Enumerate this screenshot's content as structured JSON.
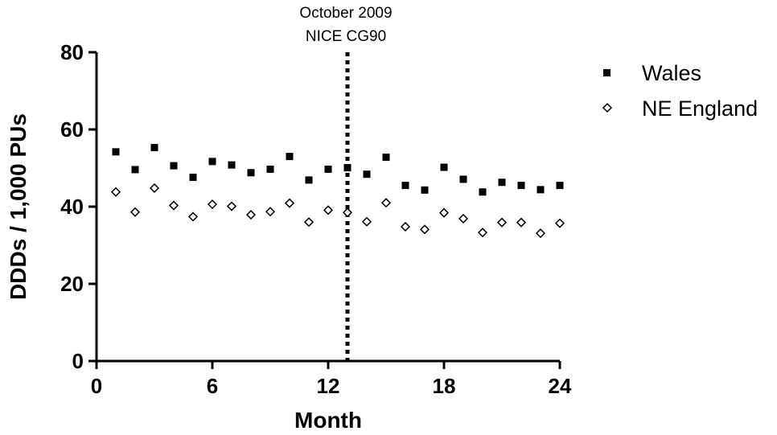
{
  "chart_data": {
    "type": "scatter",
    "title": "",
    "xlabel": "Month",
    "ylabel": "DDDs / 1,000 PUs",
    "xlim": [
      0,
      24
    ],
    "ylim": [
      0,
      80
    ],
    "xticks": [
      0,
      6,
      12,
      18,
      24
    ],
    "yticks": [
      0,
      20,
      40,
      60,
      80
    ],
    "grid": false,
    "legend_position": "top-right",
    "annotation": {
      "lines": [
        "October 2009",
        "NICE CG90"
      ],
      "x": 13,
      "style": "dotted vertical line"
    },
    "series": [
      {
        "name": "Wales",
        "marker": "filled-square",
        "color": "#000000",
        "x": [
          1,
          2,
          3,
          4,
          5,
          6,
          7,
          8,
          9,
          10,
          11,
          12,
          13,
          14,
          15,
          16,
          17,
          18,
          19,
          20,
          21,
          22,
          23,
          24
        ],
        "y": [
          54.2,
          49.6,
          55.3,
          50.6,
          47.6,
          51.7,
          50.8,
          48.8,
          49.7,
          53,
          46.9,
          49.7,
          50.1,
          48.4,
          52.8,
          45.5,
          44.3,
          50.2,
          47.1,
          43.8,
          46.3,
          45.5,
          44.4,
          45.5
        ]
      },
      {
        "name": "NE England",
        "marker": "open-diamond",
        "color": "#000000",
        "x": [
          1,
          2,
          3,
          4,
          5,
          6,
          7,
          8,
          9,
          10,
          11,
          12,
          13,
          14,
          15,
          16,
          17,
          18,
          19,
          20,
          21,
          22,
          23,
          24
        ],
        "y": [
          43.8,
          38.6,
          44.8,
          40.3,
          37.4,
          40.6,
          40.1,
          37.9,
          38.7,
          40.9,
          36,
          39.1,
          38.5,
          36.1,
          41,
          34.8,
          34.1,
          38.4,
          36.9,
          33.3,
          35.9,
          35.9,
          33.1,
          35.7
        ]
      }
    ]
  }
}
